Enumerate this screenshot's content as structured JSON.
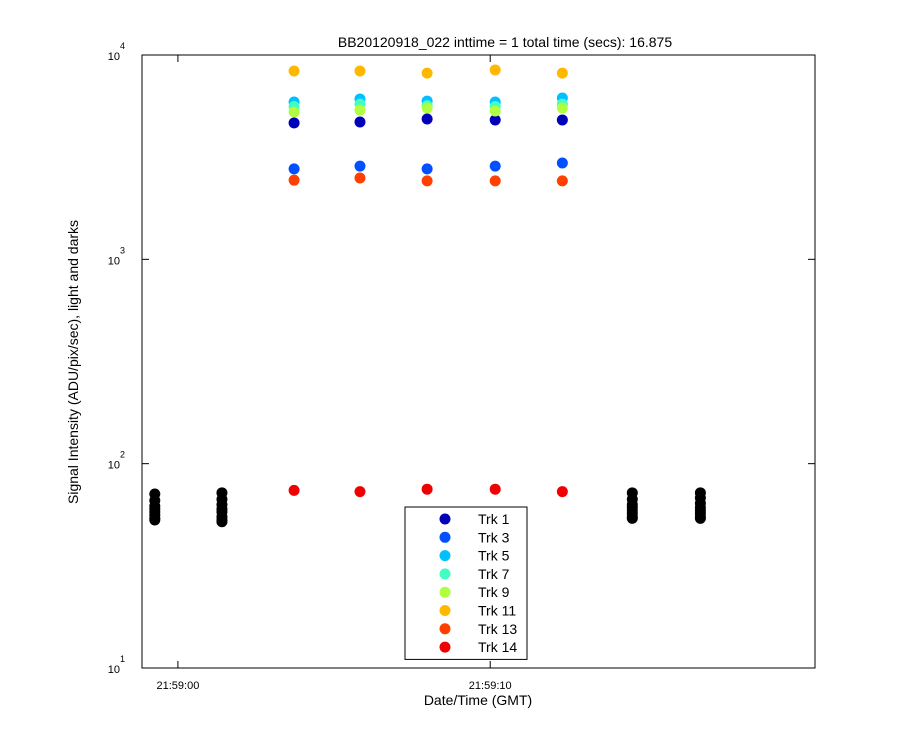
{
  "chart_data": {
    "type": "scatter",
    "title": "BB20120918_022 inttime = 1 total time (secs): 16.875",
    "x_label": "Date/Time (GMT)",
    "y_label": "Signal Intensity (ADU/pix/sec), light and darks",
    "log_y": true,
    "xlim": [
      79138.85,
      79160.4
    ],
    "xticks": [
      {
        "value": 79140,
        "label": "21:59:00"
      },
      {
        "value": 79150,
        "label": "21:59:10"
      }
    ],
    "ylim": [
      10,
      10000
    ],
    "yticks": [
      {
        "value": 10,
        "label": "10",
        "power": "1"
      },
      {
        "value": 100,
        "label": "10",
        "power": "2"
      },
      {
        "value": 1000,
        "label": "10",
        "power": "3"
      },
      {
        "value": 10000,
        "label": "10",
        "power": "4"
      }
    ],
    "legend": "bottom-center",
    "series": [
      {
        "name": "Trk 1",
        "color": "#0000b8",
        "x": [
          79143.72,
          79145.83,
          79147.98,
          79150.16,
          79152.31
        ],
        "values": [
          4650,
          4700,
          4860,
          4810,
          4810
        ]
      },
      {
        "name": "Trk 3",
        "color": "#0050ff",
        "x": [
          79143.72,
          79145.83,
          79147.98,
          79150.16,
          79152.31
        ],
        "values": [
          2770,
          2860,
          2770,
          2860,
          2960
        ]
      },
      {
        "name": "Trk 5",
        "color": "#00c0ff",
        "x": [
          79143.72,
          79145.83,
          79147.98,
          79150.16,
          79152.31
        ],
        "values": [
          5890,
          6090,
          5950,
          5890,
          6160
        ]
      },
      {
        "name": "Trk 7",
        "color": "#40ffc0",
        "x": [
          79143.72,
          79145.83,
          79147.98,
          79150.16,
          79152.31
        ],
        "values": [
          5600,
          5750,
          5650,
          5600,
          5750
        ]
      },
      {
        "name": "Trk 9",
        "color": "#b0ff40",
        "x": [
          79143.72,
          79145.83,
          79147.98,
          79150.16,
          79152.31
        ],
        "values": [
          5260,
          5380,
          5500,
          5320,
          5500
        ]
      },
      {
        "name": "Trk 11",
        "color": "#ffb800",
        "x": [
          79143.72,
          79145.83,
          79147.98,
          79150.16,
          79152.31
        ],
        "values": [
          8350,
          8350,
          8150,
          8450,
          8150
        ]
      },
      {
        "name": "Trk 13",
        "color": "#ff4000",
        "x": [
          79143.72,
          79145.83,
          79147.98,
          79150.16,
          79152.31
        ],
        "values": [
          2440,
          2500,
          2420,
          2420,
          2420
        ]
      },
      {
        "name": "Trk 14",
        "color": "#f00000",
        "x": [
          79143.72,
          79145.83,
          79147.98,
          79150.16,
          79152.31
        ],
        "values": [
          74,
          73,
          75,
          75,
          73
        ]
      },
      {
        "color": "#000000",
        "x": [
          79139.26,
          79139.26,
          79139.26,
          79139.26,
          79139.26,
          79139.26,
          79139.26,
          79139.26,
          79141.41,
          79141.41,
          79141.41,
          79141.41,
          79141.41,
          79141.41,
          79141.41,
          79141.41,
          79154.55,
          79154.55,
          79154.55,
          79154.55,
          79154.55,
          79154.55,
          79154.55,
          79154.55,
          79156.73,
          79156.73,
          79156.73,
          79156.73,
          79156.73,
          79156.73,
          79156.73,
          79156.73
        ],
        "values": [
          71,
          66,
          62,
          60,
          58,
          56,
          54,
          53,
          72,
          67,
          63,
          60,
          58,
          55,
          53,
          52,
          72,
          67,
          63,
          61,
          59,
          57,
          55,
          54,
          72,
          68,
          64,
          61,
          59,
          57,
          55,
          54
        ]
      }
    ]
  }
}
